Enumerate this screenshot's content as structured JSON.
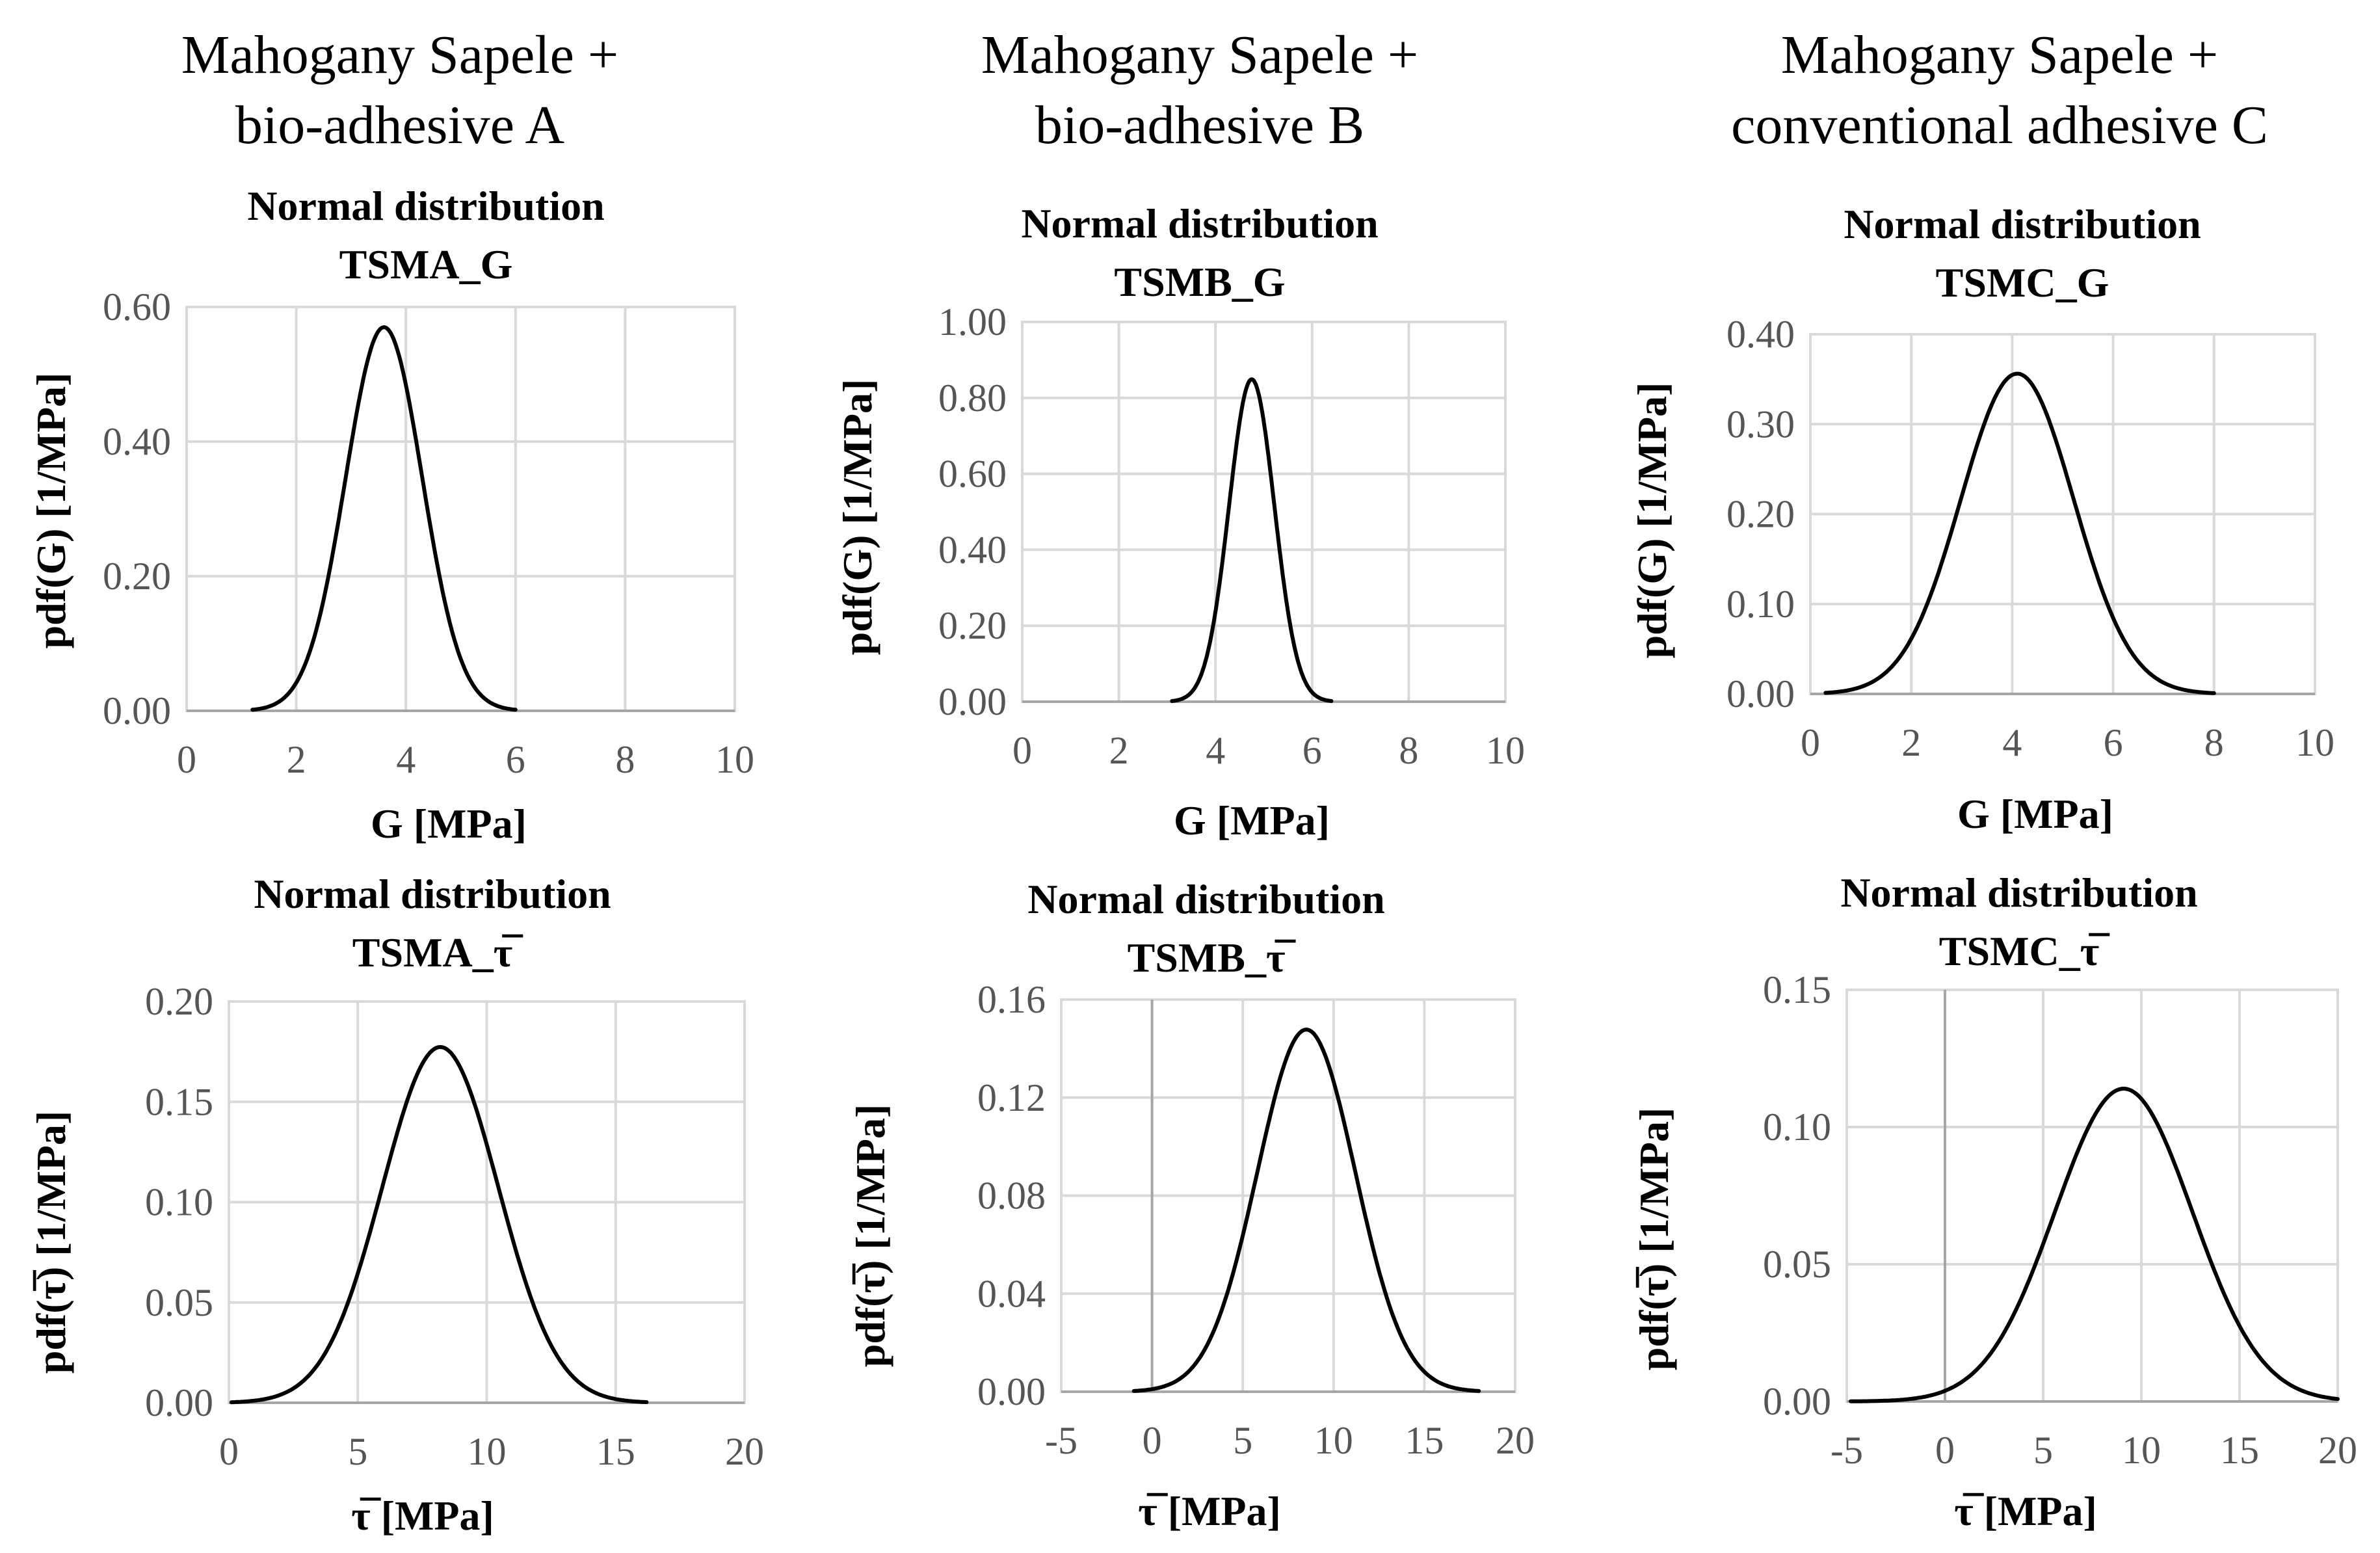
{
  "column_titles": [
    {
      "line1": "Mahogany Sapele +",
      "line2": "bio-adhesive A"
    },
    {
      "line1": "Mahogany Sapele +",
      "line2": "bio-adhesive B"
    },
    {
      "line1": "Mahogany Sapele +",
      "line2": "conventional adhesive C"
    }
  ],
  "colors": {
    "line": "#000000",
    "grid": "#d9d9d9",
    "axis": "#a6a6a6",
    "tick_text": "#555555",
    "label_text": "#000000"
  },
  "chart_data": [
    {
      "id": "tsma-g",
      "type": "line",
      "distribution": "normal",
      "title_line1": "Normal distribution",
      "title_line2": "TSMA_G",
      "xlabel": "G [MPa]",
      "ylabel": "pdf(G) [1/MPa]",
      "xlim": [
        0,
        10
      ],
      "ylim": [
        0,
        0.6
      ],
      "xticks": [
        0,
        2,
        4,
        6,
        8,
        10
      ],
      "xtick_labels": [
        "0",
        "2",
        "4",
        "6",
        "8",
        "10"
      ],
      "yticks": [
        0,
        0.2,
        0.4,
        0.6
      ],
      "ytick_labels": [
        "0.00",
        "0.20",
        "0.40",
        "0.60"
      ],
      "mean": 3.6,
      "std": 0.7,
      "x_range": [
        1.2,
        6.0
      ]
    },
    {
      "id": "tsmb-g",
      "type": "line",
      "distribution": "normal",
      "title_line1": "Normal distribution",
      "title_line2": "TSMB_G",
      "xlabel": "G [MPa]",
      "ylabel": "pdf(G) [1/MPa]",
      "xlim": [
        0,
        10
      ],
      "ylim": [
        0,
        1.0
      ],
      "xticks": [
        0,
        2,
        4,
        6,
        8,
        10
      ],
      "xtick_labels": [
        "0",
        "2",
        "4",
        "6",
        "8",
        "10"
      ],
      "yticks": [
        0,
        0.2,
        0.4,
        0.6,
        0.8,
        1.0
      ],
      "ytick_labels": [
        "0.00",
        "0.20",
        "0.40",
        "0.60",
        "0.80",
        "1.00"
      ],
      "mean": 4.75,
      "std": 0.47,
      "x_range": [
        3.1,
        6.4
      ]
    },
    {
      "id": "tsmc-g",
      "type": "line",
      "distribution": "normal",
      "title_line1": "Normal distribution",
      "title_line2": "TSMC_G",
      "xlabel": "G [MPa]",
      "ylabel": "pdf(G) [1/MPa]",
      "xlim": [
        0,
        10
      ],
      "ylim": [
        0,
        0.4
      ],
      "xticks": [
        0,
        2,
        4,
        6,
        8,
        10
      ],
      "xtick_labels": [
        "0",
        "2",
        "4",
        "6",
        "8",
        "10"
      ],
      "yticks": [
        0,
        0.1,
        0.2,
        0.3,
        0.4
      ],
      "ytick_labels": [
        "0.00",
        "0.10",
        "0.20",
        "0.30",
        "0.40"
      ],
      "mean": 4.1,
      "std": 1.12,
      "x_range": [
        0.3,
        8.0
      ]
    },
    {
      "id": "tsma-tau",
      "type": "line",
      "distribution": "normal",
      "title_line1": "Normal distribution",
      "title_line2": "TSMA_τ̅",
      "xlabel": "τ̅  [MPa]",
      "ylabel": "pdf(τ̅) [1/MPa]",
      "xlim": [
        0,
        20
      ],
      "ylim": [
        0,
        0.2
      ],
      "xticks": [
        0,
        5,
        10,
        15,
        20
      ],
      "xtick_labels": [
        "0",
        "5",
        "10",
        "15",
        "20"
      ],
      "yticks": [
        0,
        0.05,
        0.1,
        0.15,
        0.2
      ],
      "ytick_labels": [
        "0.00",
        "0.05",
        "0.10",
        "0.15",
        "0.20"
      ],
      "mean": 8.2,
      "std": 2.25,
      "x_range": [
        0.1,
        16.2
      ]
    },
    {
      "id": "tsmb-tau",
      "type": "line",
      "distribution": "normal",
      "title_line1": "Normal distribution",
      "title_line2": "TSMB_τ̅",
      "xlabel": "τ̅  [MPa]",
      "ylabel": "pdf(τ̅) [1/MPa]",
      "xlim": [
        -5,
        20
      ],
      "ylim": [
        0,
        0.16
      ],
      "xticks": [
        -5,
        0,
        5,
        10,
        15,
        20
      ],
      "xtick_labels": [
        "-5",
        "0",
        "5",
        "10",
        "15",
        "20"
      ],
      "yticks": [
        0,
        0.04,
        0.08,
        0.12,
        0.16
      ],
      "ytick_labels": [
        "0.00",
        "0.04",
        "0.08",
        "0.12",
        "0.16"
      ],
      "mean": 8.5,
      "std": 2.7,
      "x_range": [
        -1.0,
        18.0
      ]
    },
    {
      "id": "tsmc-tau",
      "type": "line",
      "distribution": "normal",
      "title_line1": "Normal distribution",
      "title_line2": "TSMC_τ̅",
      "xlabel": "τ̅  [MPa]",
      "ylabel": "pdf(τ̅) [1/MPa]",
      "xlim": [
        -5,
        20
      ],
      "ylim": [
        0,
        0.15
      ],
      "xticks": [
        -5,
        0,
        5,
        10,
        15,
        20
      ],
      "xtick_labels": [
        "-5",
        "0",
        "5",
        "10",
        "15",
        "20"
      ],
      "yticks": [
        0,
        0.05,
        0.1,
        0.15
      ],
      "ytick_labels": [
        "0.00",
        "0.05",
        "0.10",
        "0.15"
      ],
      "mean": 9.1,
      "std": 3.5,
      "x_range": [
        -4.8,
        20.0
      ]
    }
  ]
}
